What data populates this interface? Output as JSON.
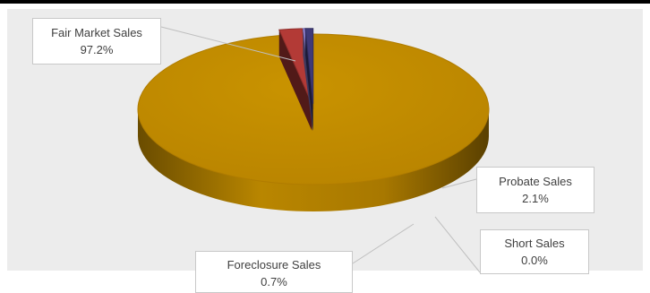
{
  "chart_data": {
    "type": "pie",
    "style": "3d-pie",
    "categories": [
      "Fair Market Sales",
      "Probate Sales",
      "Short Sales",
      "Foreclosure Sales"
    ],
    "values": [
      97.2,
      2.1,
      0.0,
      0.7
    ],
    "value_labels": [
      "97.2%",
      "2.1%",
      "0.0%",
      "0.7%"
    ],
    "title": "",
    "legend": "none",
    "colors": [
      "#c08a00",
      "#b33a36",
      "#8d7fd0",
      "#3f3a78"
    ]
  }
}
